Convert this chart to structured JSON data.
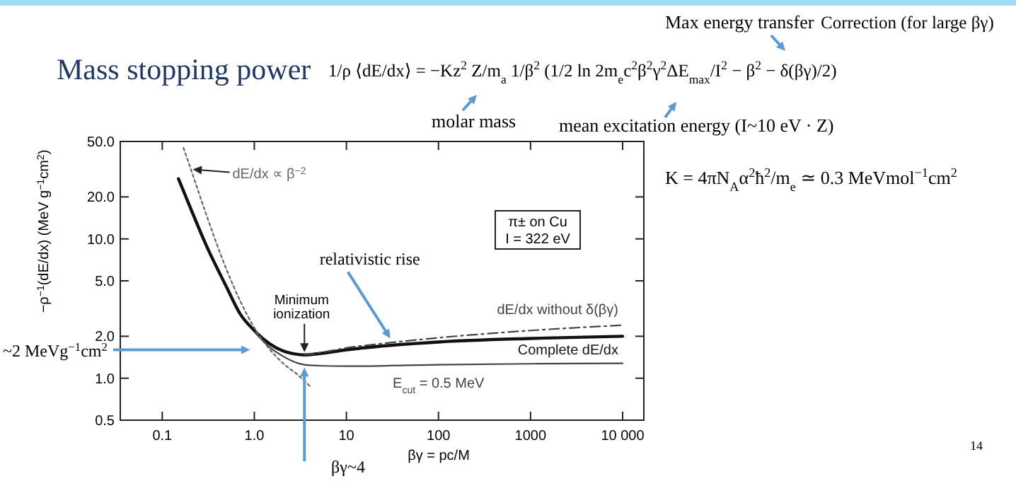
{
  "chart_data": {
    "type": "line",
    "title": "Mass stopping power",
    "subtitle": "1/ρ ⟨dE/dx⟩ = −Kz$^{2}$ Z/m$_{a}$ 1/β$^{2}$ (1/2 ln 2m$_{e}$c$^{2}$β$^{2}$γ$^{2}$ΔE$_{max}$/I$^{2}$ − β$^{2}$ − δ(βγ)/2)",
    "xlabel": "βγ = pc/M",
    "ylabel": "−ρ$^{−1}$(dE/dx) (MeV g$^{−1}$cm$^{2}$)",
    "log": "xy",
    "grid": false,
    "xlim": [
      0.035,
      17000
    ],
    "ylim": [
      0.5,
      50
    ],
    "xticks": [
      {
        "value": 0.1,
        "label": "0.1"
      },
      {
        "value": 1,
        "label": "1.0"
      },
      10,
      100,
      1000,
      {
        "value": 10000,
        "label": "10 000"
      }
    ],
    "yticks": [
      {
        "value": 0.5,
        "label": "0.5"
      },
      {
        "value": 1,
        "label": "1.0"
      },
      {
        "value": 2,
        "label": "2.0"
      },
      {
        "value": 5,
        "label": "5.0"
      },
      {
        "value": 10,
        "label": "10.0"
      },
      {
        "value": 20,
        "label": "20.0"
      },
      {
        "value": 50,
        "label": "50.0"
      }
    ],
    "series": [
      {
        "name": "Complete dE/dx",
        "color": "#111111",
        "line_style": "solid",
        "x": [
          0.15,
          0.2,
          0.3,
          0.5,
          0.7,
          1,
          1.5,
          2,
          3,
          3.5,
          5,
          10,
          30,
          100,
          1000,
          10000
        ],
        "values": [
          27,
          17,
          9,
          4.5,
          2.9,
          2.2,
          1.75,
          1.58,
          1.48,
          1.47,
          1.5,
          1.6,
          1.72,
          1.82,
          1.93,
          2.0
        ]
      },
      {
        "name": "dE/dx without δ(βγ)",
        "color": "#444444",
        "line_style": "dashed",
        "x": [
          3.5,
          5,
          10,
          30,
          100,
          1000,
          10000
        ],
        "values": [
          1.47,
          1.52,
          1.65,
          1.8,
          1.95,
          2.2,
          2.4
        ]
      },
      {
        "name": "E$_{cut}$ = 0.5 MeV",
        "color": "#444444",
        "line_style": "solid",
        "x": [
          1,
          1.5,
          2,
          3,
          3.5,
          5,
          10,
          100,
          1000,
          10000
        ],
        "values": [
          2.15,
          1.65,
          1.45,
          1.28,
          1.25,
          1.23,
          1.22,
          1.25,
          1.27,
          1.28
        ]
      },
      {
        "name": "dE/dx ∝ β$^{−2}$",
        "color": "#666666",
        "line_style": "dotted",
        "x": [
          0.17,
          0.2,
          0.3,
          0.5,
          1,
          2,
          3,
          4
        ],
        "values": [
          45,
          33,
          15,
          6,
          2.3,
          1.3,
          1.05,
          0.88
        ]
      }
    ],
    "annotations": [
      "Max energy transfer",
      "Correction (for large βγ)",
      "molar mass",
      "mean excitation energy (I~10 eV · Z)",
      "K = 4πN$_{A}$α$^{2}$ħ$^{2}$/m$_{e}$ ≃ 0.3 MeVmol$^{−1}$cm$^{2}$",
      "~2 MeVg$^{−1}$cm$^{2}$",
      "βγ~4",
      "14",
      "π± on Cu",
      "I = 322 eV",
      {
        "text": "Minimum ionization",
        "x": 3.5,
        "y": 1.47
      },
      {
        "text": "relativistic rise",
        "x": 30,
        "y": 1.8
      }
    ]
  }
}
